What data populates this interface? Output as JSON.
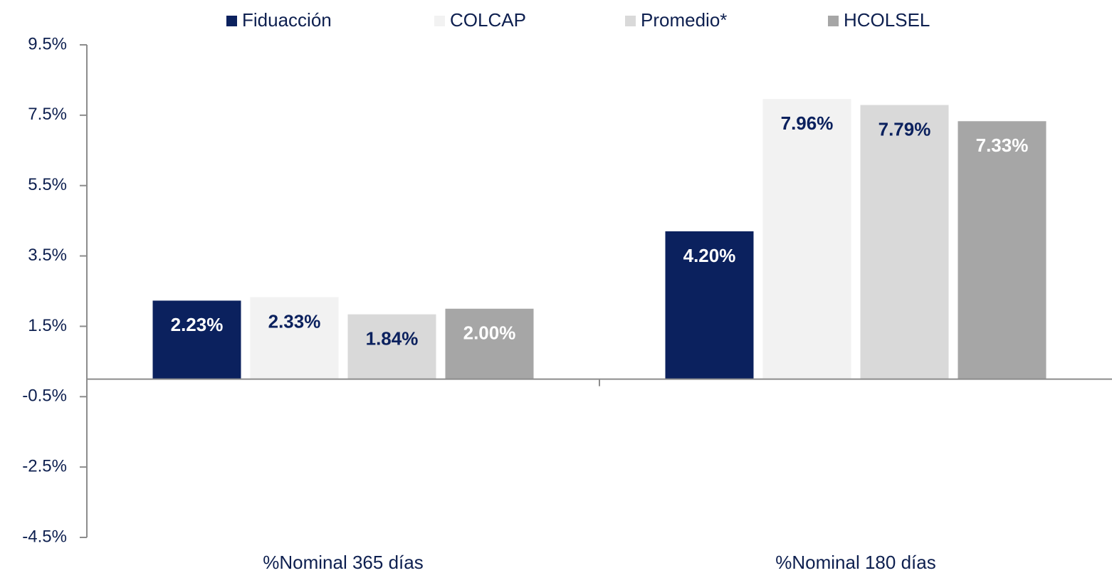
{
  "chart_data": {
    "type": "bar",
    "categories": [
      "%Nominal 365 días",
      "%Nominal 180 días"
    ],
    "series": [
      {
        "name": "Fiduacción",
        "color": "#0b215e",
        "label_color": "#ffffff",
        "values": [
          2.23,
          4.2
        ],
        "value_labels": [
          "2.23%",
          "4.20%"
        ]
      },
      {
        "name": "COLCAP",
        "color": "#f2f2f2",
        "label_color": "#0b215e",
        "values": [
          2.33,
          7.96
        ],
        "value_labels": [
          "2.33%",
          "7.96%"
        ]
      },
      {
        "name": "Promedio*",
        "color": "#d9d9d9",
        "label_color": "#0b215e",
        "values": [
          1.84,
          7.79
        ],
        "value_labels": [
          "1.84%",
          "7.79%"
        ]
      },
      {
        "name": "HCOLSEL",
        "color": "#a6a6a6",
        "label_color": "#ffffff",
        "values": [
          2.0,
          7.33
        ],
        "value_labels": [
          "2.00%",
          "7.33%"
        ]
      }
    ],
    "ylim": [
      -4.5,
      9.5
    ],
    "yticks": [
      {
        "value": -4.5,
        "label": "-4.5%"
      },
      {
        "value": -2.5,
        "label": "-2.5%"
      },
      {
        "value": -0.5,
        "label": "-0.5%"
      },
      {
        "value": 1.5,
        "label": "1.5%"
      },
      {
        "value": 3.5,
        "label": "3.5%"
      },
      {
        "value": 5.5,
        "label": "5.5%"
      },
      {
        "value": 7.5,
        "label": "7.5%"
      },
      {
        "value": 9.5,
        "label": "9.5%"
      }
    ],
    "grid": false,
    "legend": "top"
  }
}
